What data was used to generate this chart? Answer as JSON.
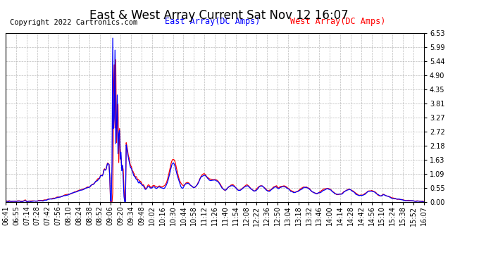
{
  "title": "East & West Array Current Sat Nov 12 16:07",
  "copyright": "Copyright 2022 Cartronics.com",
  "legend_east": "East Array(DC Amps)",
  "legend_west": "West Array(DC Amps)",
  "east_color": "#0000ff",
  "west_color": "#ff0000",
  "background_color": "#ffffff",
  "plot_bg_color": "#ffffff",
  "grid_color": "#aaaaaa",
  "yticks": [
    0.0,
    0.55,
    1.09,
    1.63,
    2.18,
    2.72,
    3.27,
    3.81,
    4.35,
    4.9,
    5.44,
    5.99,
    6.53
  ],
  "ylim": [
    0.0,
    6.53
  ],
  "xtick_labels": [
    "06:41",
    "06:55",
    "07:14",
    "07:28",
    "07:42",
    "07:56",
    "08:10",
    "08:24",
    "08:38",
    "08:52",
    "09:06",
    "09:20",
    "09:34",
    "09:48",
    "10:02",
    "10:16",
    "10:30",
    "10:44",
    "10:58",
    "11:12",
    "11:26",
    "11:40",
    "11:54",
    "12:08",
    "12:22",
    "12:36",
    "12:50",
    "13:04",
    "13:18",
    "13:32",
    "13:46",
    "14:00",
    "14:14",
    "14:28",
    "14:42",
    "14:56",
    "15:10",
    "15:24",
    "15:38",
    "15:52",
    "16:07"
  ],
  "title_fontsize": 12,
  "tick_fontsize": 7,
  "legend_fontsize": 8.5,
  "copyright_fontsize": 7.5,
  "line_width": 0.9
}
